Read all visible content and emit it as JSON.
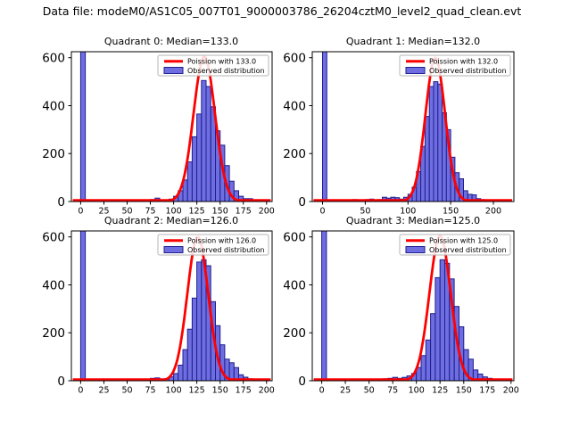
{
  "suptitle": "Data file: modeM0/AS1C05_007T01_9000003786_26204cztM0_level2_quad_clean.evt",
  "colors": {
    "background": "#ffffff",
    "bar_fill": "#6e6ee0",
    "bar_edge": "#1f1f8f",
    "curve": "#ff0000",
    "axis": "#000000",
    "legend_border": "#b5b5b5"
  },
  "chart_data": [
    {
      "type": "histogram",
      "title": "Quadrant 0: Median=133.0",
      "median": 133.0,
      "legend": [
        "Poission with 133.0",
        "Observed distribution"
      ],
      "legend_position": "upper right",
      "grid": false,
      "xlabel": "",
      "ylabel": "",
      "xlim": [
        -10,
        206
      ],
      "ylim": [
        0,
        625
      ],
      "xticks": [
        0,
        25,
        50,
        75,
        100,
        125,
        150,
        175,
        200
      ],
      "yticks": [
        0,
        200,
        400,
        600
      ],
      "bin_width": 5,
      "zero_bar": {
        "start": 0,
        "end": 5,
        "clipped": true
      },
      "bars": {
        "starts": [
          75,
          80,
          85,
          90,
          95,
          100,
          105,
          110,
          115,
          120,
          125,
          130,
          135,
          140,
          145,
          150,
          155,
          160,
          165,
          170,
          175,
          180,
          185,
          190
        ],
        "counts": [
          8,
          14,
          6,
          6,
          10,
          22,
          45,
          90,
          165,
          270,
          365,
          505,
          480,
          395,
          295,
          235,
          150,
          85,
          45,
          22,
          12,
          12,
          6,
          4
        ]
      },
      "poisson": {
        "mu": 133.0,
        "amplitude": 605
      }
    },
    {
      "type": "histogram",
      "title": "Quadrant 1: Median=132.0",
      "median": 132.0,
      "legend": [
        "Poission with 132.0",
        "Observed distribution"
      ],
      "legend_position": "upper right",
      "grid": false,
      "xlabel": "",
      "ylabel": "",
      "xlim": [
        -12,
        224
      ],
      "ylim": [
        0,
        625
      ],
      "xticks": [
        0,
        50,
        100,
        150,
        200
      ],
      "yticks": [
        0,
        200,
        400,
        600
      ],
      "bin_width": 5,
      "zero_bar": {
        "start": 0,
        "end": 5,
        "clipped": true
      },
      "bars": {
        "starts": [
          35,
          50,
          55,
          65,
          70,
          75,
          80,
          85,
          90,
          95,
          100,
          105,
          110,
          115,
          120,
          125,
          130,
          135,
          140,
          145,
          150,
          155,
          160,
          165,
          170,
          175,
          180,
          185,
          190,
          195,
          210
        ],
        "counts": [
          8,
          8,
          10,
          8,
          18,
          14,
          18,
          16,
          10,
          18,
          30,
          60,
          125,
          230,
          355,
          480,
          500,
          490,
          370,
          300,
          185,
          120,
          95,
          45,
          30,
          28,
          12,
          8,
          6,
          4,
          4
        ]
      },
      "poisson": {
        "mu": 132.0,
        "amplitude": 600
      }
    },
    {
      "type": "histogram",
      "title": "Quadrant 2: Median=126.0",
      "median": 126.0,
      "legend": [
        "Poission with 126.0",
        "Observed distribution"
      ],
      "legend_position": "upper right",
      "grid": false,
      "xlabel": "",
      "ylabel": "",
      "xlim": [
        -10,
        206
      ],
      "ylim": [
        0,
        625
      ],
      "xticks": [
        0,
        25,
        50,
        75,
        100,
        125,
        150,
        175,
        200
      ],
      "yticks": [
        0,
        200,
        400,
        600
      ],
      "bin_width": 5,
      "zero_bar": {
        "start": 0,
        "end": 5,
        "clipped": true
      },
      "bars": {
        "starts": [
          75,
          80,
          90,
          95,
          100,
          105,
          110,
          115,
          120,
          125,
          130,
          135,
          140,
          145,
          150,
          155,
          160,
          165,
          170,
          175,
          180
        ],
        "counts": [
          10,
          12,
          8,
          16,
          30,
          65,
          130,
          215,
          345,
          495,
          505,
          480,
          330,
          230,
          150,
          90,
          75,
          55,
          25,
          15,
          8
        ]
      },
      "poisson": {
        "mu": 126.0,
        "amplitude": 600
      }
    },
    {
      "type": "histogram",
      "title": "Quadrant 3: Median=125.0",
      "median": 125.0,
      "legend": [
        "Poission with 125.0",
        "Observed distribution"
      ],
      "legend_position": "upper right",
      "grid": false,
      "xlabel": "",
      "ylabel": "",
      "xlim": [
        -10,
        203
      ],
      "ylim": [
        0,
        625
      ],
      "xticks": [
        0,
        25,
        50,
        75,
        100,
        125,
        150,
        175,
        200
      ],
      "yticks": [
        0,
        200,
        400,
        600
      ],
      "bin_width": 5,
      "zero_bar": {
        "start": 0,
        "end": 5,
        "clipped": true
      },
      "bars": {
        "starts": [
          60,
          65,
          70,
          75,
          80,
          85,
          90,
          95,
          100,
          105,
          110,
          115,
          120,
          125,
          130,
          135,
          140,
          145,
          150,
          155,
          160,
          165,
          170,
          175,
          180,
          185
        ],
        "counts": [
          6,
          8,
          10,
          14,
          10,
          14,
          20,
          30,
          55,
          105,
          170,
          280,
          430,
          505,
          490,
          425,
          310,
          225,
          130,
          90,
          45,
          28,
          16,
          10,
          6,
          4
        ]
      },
      "poisson": {
        "mu": 125.0,
        "amplitude": 605
      }
    }
  ]
}
